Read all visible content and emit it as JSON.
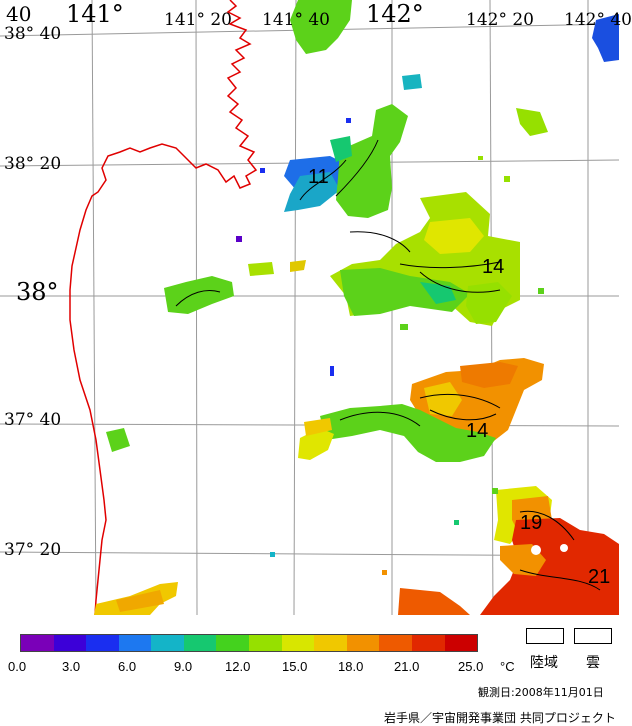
{
  "map": {
    "lon_labels": [
      "141°",
      "141° 20",
      "141° 40",
      "142°",
      "142° 20",
      "142° 40"
    ],
    "lat_labels": [
      "38° 40",
      "38° 20",
      "38°",
      "37° 40",
      "37° 20"
    ],
    "corner_label": "40",
    "contour_labels": [
      "11",
      "14",
      "14",
      "19",
      "21"
    ],
    "colors": {
      "coast": "#e00000",
      "grid": "#9a9a9a",
      "contour": "#000000"
    }
  },
  "legend": {
    "ticks": [
      "0.0",
      "3.0",
      "6.0",
      "9.0",
      "12.0",
      "15.0",
      "18.0",
      "21.0",
      "25.0"
    ],
    "unit": "°C",
    "land_label": "陸域",
    "cloud_label": "雲",
    "observation_date": "観測日:2008年11月01日",
    "credit": "岩手県／宇宙開発事業団 共同プロジェクト",
    "colors": [
      "#7a00b8",
      "#3c00d8",
      "#1a2ef0",
      "#1d78f0",
      "#14b4c8",
      "#16c870",
      "#44d21e",
      "#96e000",
      "#d8e600",
      "#f0c800",
      "#f29100",
      "#ee5a00",
      "#e12800",
      "#cc0000"
    ]
  }
}
